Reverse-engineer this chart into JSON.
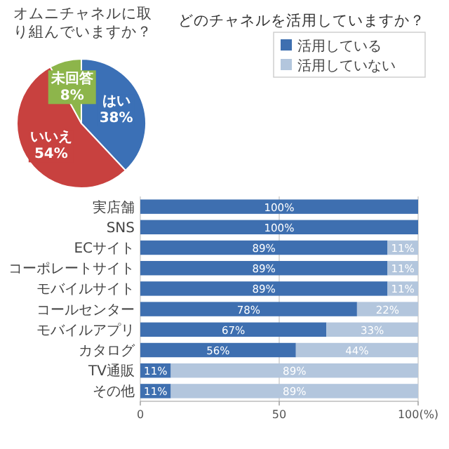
{
  "chart_data": [
    {
      "type": "pie",
      "title": "オムニチャネルに取り組んでいますか？",
      "categories": [
        "はい",
        "いいえ",
        "未回答"
      ],
      "values": [
        38,
        54,
        8
      ],
      "colors": [
        "#3b70b6",
        "#c8413f",
        "#8db54b"
      ],
      "value_labels": [
        "38%",
        "54%",
        "8%"
      ]
    },
    {
      "type": "bar",
      "orientation": "horizontal",
      "stacked": true,
      "title": "どのチャネルを活用していますか？",
      "categories": [
        "実店舗",
        "SNS",
        "ECサイト",
        "コーポレートサイト",
        "モバイルサイト",
        "コールセンター",
        "モバイルアプリ",
        "カタログ",
        "TV通販",
        "その他"
      ],
      "series": [
        {
          "name": "活用している",
          "color": "#3e6fb0",
          "values": [
            100,
            100,
            89,
            89,
            89,
            78,
            67,
            56,
            11,
            11
          ],
          "value_labels": [
            "100%",
            "100%",
            "89%",
            "89%",
            "89%",
            "78%",
            "67%",
            "56%",
            "11%",
            "11%"
          ]
        },
        {
          "name": "活用していない",
          "color": "#b3c6dd",
          "values": [
            0,
            0,
            11,
            11,
            11,
            22,
            33,
            44,
            89,
            89
          ],
          "value_labels": [
            null,
            null,
            "11%",
            "11%",
            "11%",
            "22%",
            "33%",
            "44%",
            "89%",
            "89%"
          ]
        }
      ],
      "xlim": [
        0,
        100
      ],
      "xticks": [
        0,
        50,
        {
          "value": 100,
          "label": "100(%)"
        }
      ],
      "grid": "x",
      "legend": "top right"
    }
  ]
}
